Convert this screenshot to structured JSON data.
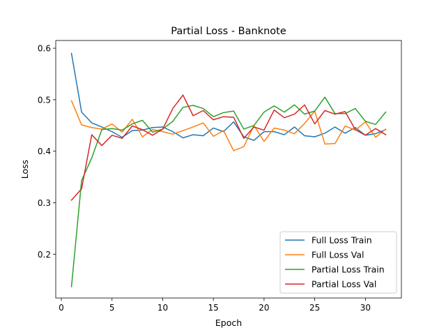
{
  "chart_data": {
    "type": "line",
    "title": "Partial Loss - Banknote",
    "xlabel": "Epoch",
    "ylabel": "Loss",
    "xlim": [
      -0.55,
      33.55
    ],
    "ylim": [
      0.115,
      0.615
    ],
    "xticks": [
      0,
      5,
      10,
      15,
      20,
      25,
      30
    ],
    "yticks": [
      0.2,
      0.3,
      0.4,
      0.5,
      0.6
    ],
    "grid": false,
    "legend_position": "lower right",
    "x": [
      1,
      2,
      3,
      4,
      5,
      6,
      7,
      8,
      9,
      10,
      11,
      12,
      13,
      14,
      15,
      16,
      17,
      18,
      19,
      20,
      21,
      22,
      23,
      24,
      25,
      26,
      27,
      28,
      29,
      30,
      31,
      32
    ],
    "series": [
      {
        "name": "Full Loss Train",
        "color": "#1f77b4",
        "values": [
          0.59,
          0.476,
          0.455,
          0.447,
          0.438,
          0.427,
          0.44,
          0.441,
          0.446,
          0.447,
          0.438,
          0.426,
          0.432,
          0.43,
          0.445,
          0.438,
          0.457,
          0.428,
          0.421,
          0.438,
          0.438,
          0.432,
          0.447,
          0.43,
          0.428,
          0.435,
          0.447,
          0.435,
          0.446,
          0.431,
          0.434,
          0.442
        ]
      },
      {
        "name": "Full Loss Val",
        "color": "#ff7f0e",
        "values": [
          0.498,
          0.451,
          0.446,
          0.443,
          0.453,
          0.437,
          0.462,
          0.428,
          0.442,
          0.438,
          0.433,
          0.44,
          0.447,
          0.455,
          0.429,
          0.44,
          0.401,
          0.409,
          0.45,
          0.419,
          0.445,
          0.441,
          0.434,
          0.454,
          0.478,
          0.414,
          0.415,
          0.449,
          0.441,
          0.457,
          0.427,
          0.443
        ]
      },
      {
        "name": "Partial Loss Train",
        "color": "#2ca02c",
        "values": [
          0.137,
          0.343,
          0.387,
          0.442,
          0.444,
          0.441,
          0.453,
          0.46,
          0.437,
          0.443,
          0.458,
          0.485,
          0.489,
          0.483,
          0.467,
          0.475,
          0.478,
          0.443,
          0.45,
          0.476,
          0.488,
          0.476,
          0.49,
          0.472,
          0.478,
          0.505,
          0.473,
          0.473,
          0.483,
          0.458,
          0.452,
          0.476
        ]
      },
      {
        "name": "Partial Loss Val",
        "color": "#d62728",
        "values": [
          0.305,
          0.327,
          0.432,
          0.411,
          0.431,
          0.425,
          0.449,
          0.442,
          0.431,
          0.443,
          0.483,
          0.509,
          0.469,
          0.479,
          0.461,
          0.467,
          0.466,
          0.425,
          0.447,
          0.441,
          0.48,
          0.465,
          0.472,
          0.49,
          0.453,
          0.479,
          0.472,
          0.477,
          0.442,
          0.431,
          0.444,
          0.432
        ]
      }
    ]
  }
}
